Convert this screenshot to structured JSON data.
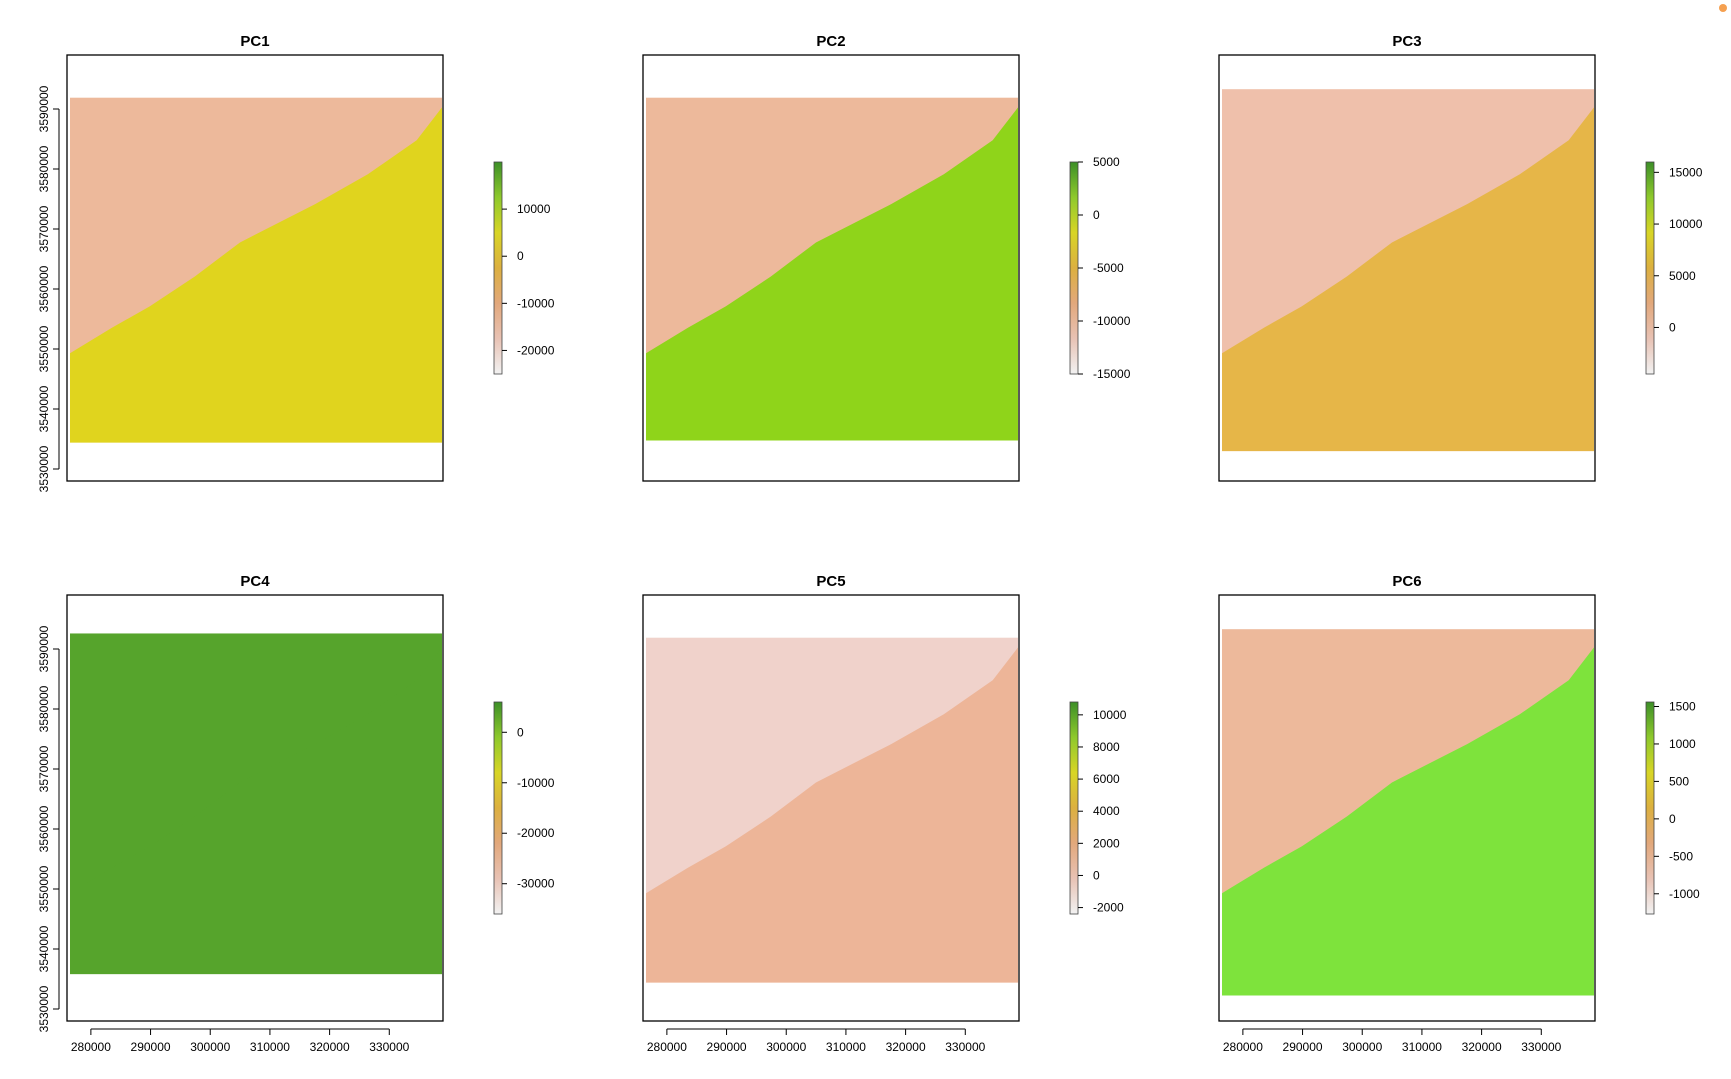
{
  "chart_data": [
    {
      "type": "heatmap",
      "title": "PC1",
      "legend_ticks": [
        10000,
        0,
        -10000,
        -20000
      ],
      "legend_range": [
        -25000,
        20000
      ],
      "xlim": [
        276000,
        339000
      ],
      "ylim": [
        3528000,
        3599000
      ],
      "show_x_axis": false,
      "show_y_axis": true,
      "sea_color": "#edb99b",
      "land_color": "#e0d41e",
      "top_fill": 0.1,
      "bottom_fill": 0.91,
      "x_ticks": [
        280000,
        290000,
        300000,
        310000,
        320000,
        330000
      ],
      "y_ticks": [
        3530000,
        3540000,
        3550000,
        3560000,
        3570000,
        3580000,
        3590000
      ]
    },
    {
      "type": "heatmap",
      "title": "PC2",
      "legend_ticks": [
        5000,
        0,
        -5000,
        -10000,
        -15000
      ],
      "legend_range": [
        -15000,
        5000
      ],
      "xlim": [
        276000,
        339000
      ],
      "ylim": [
        3528000,
        3599000
      ],
      "show_x_axis": false,
      "show_y_axis": false,
      "sea_color": "#edb99b",
      "land_color": "#8fd41a",
      "top_fill": 0.1,
      "bottom_fill": 0.905,
      "x_ticks": [
        280000,
        290000,
        300000,
        310000,
        320000,
        330000
      ],
      "y_ticks": [
        3530000,
        3540000,
        3550000,
        3560000,
        3570000,
        3580000,
        3590000
      ]
    },
    {
      "type": "heatmap",
      "title": "PC3",
      "legend_ticks": [
        15000,
        10000,
        5000,
        0
      ],
      "legend_range": [
        -4500,
        16000
      ],
      "xlim": [
        276000,
        339000
      ],
      "ylim": [
        3528000,
        3599000
      ],
      "show_x_axis": false,
      "show_y_axis": false,
      "sea_color": "#efc0ab",
      "land_color": "#e6b648",
      "top_fill": 0.08,
      "bottom_fill": 0.93,
      "x_ticks": [
        280000,
        290000,
        300000,
        310000,
        320000,
        330000
      ],
      "y_ticks": [
        3530000,
        3540000,
        3550000,
        3560000,
        3570000,
        3580000,
        3590000
      ]
    },
    {
      "type": "heatmap",
      "title": "PC4",
      "legend_ticks": [
        0,
        -10000,
        -20000,
        -30000
      ],
      "legend_range": [
        -36000,
        6000
      ],
      "xlim": [
        276000,
        339000
      ],
      "ylim": [
        3528000,
        3599000
      ],
      "show_x_axis": true,
      "show_y_axis": true,
      "sea_color": "#56a42c",
      "land_color": "#56a42c",
      "top_fill": 0.09,
      "bottom_fill": 0.89,
      "x_ticks": [
        280000,
        290000,
        300000,
        310000,
        320000,
        330000
      ],
      "y_ticks": [
        3530000,
        3540000,
        3550000,
        3560000,
        3570000,
        3580000,
        3590000
      ]
    },
    {
      "type": "heatmap",
      "title": "PC5",
      "legend_ticks": [
        10000,
        8000,
        6000,
        4000,
        2000,
        0,
        -2000
      ],
      "legend_range": [
        -2400,
        10800
      ],
      "xlim": [
        276000,
        339000
      ],
      "ylim": [
        3528000,
        3599000
      ],
      "show_x_axis": true,
      "show_y_axis": false,
      "sea_color": "#f0d2cb",
      "land_color": "#edb598",
      "top_fill": 0.1,
      "bottom_fill": 0.91,
      "x_ticks": [
        280000,
        290000,
        300000,
        310000,
        320000,
        330000
      ],
      "y_ticks": [
        3530000,
        3540000,
        3550000,
        3560000,
        3570000,
        3580000,
        3590000
      ]
    },
    {
      "type": "heatmap",
      "title": "PC6",
      "legend_ticks": [
        1500,
        1000,
        500,
        0,
        -500,
        -1000
      ],
      "legend_range": [
        -1270,
        1560
      ],
      "xlim": [
        276000,
        339000
      ],
      "ylim": [
        3528000,
        3599000
      ],
      "show_x_axis": true,
      "show_y_axis": false,
      "sea_color": "#edb99b",
      "land_color": "#7ee33c",
      "top_fill": 0.08,
      "bottom_fill": 0.94,
      "x_ticks": [
        280000,
        290000,
        300000,
        310000,
        320000,
        330000
      ],
      "y_ticks": [
        3530000,
        3540000,
        3550000,
        3560000,
        3570000,
        3580000,
        3590000
      ]
    }
  ],
  "legend_palette": [
    "#f2f2f2",
    "#e8c2b4",
    "#e2a87c",
    "#dcb040",
    "#d8d526",
    "#8ec92c",
    "#3d8f28"
  ]
}
